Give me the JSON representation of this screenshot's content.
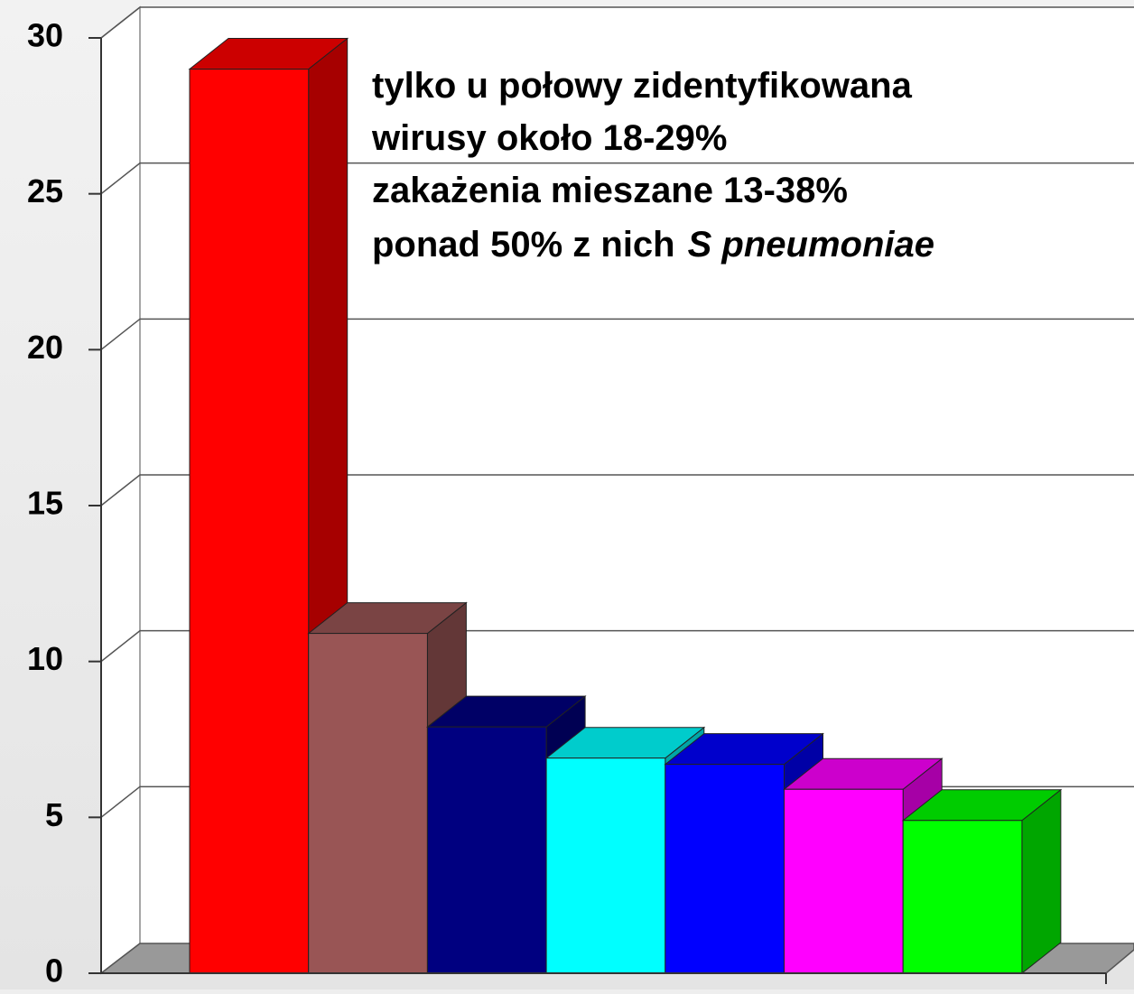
{
  "chart_data": {
    "type": "bar3d",
    "categories": [
      null,
      null,
      null,
      null,
      null,
      null,
      null
    ],
    "values": [
      29,
      10.9,
      7.9,
      6.9,
      6.7,
      5.9,
      4.9
    ],
    "colors": [
      "#ff0000",
      "#995555",
      "#000080",
      "#00ffff",
      "#0000ff",
      "#ff00ff",
      "#00ff00"
    ],
    "ylim": [
      0,
      30
    ],
    "yticks": [
      0,
      5,
      10,
      15,
      20,
      25,
      30
    ],
    "grid": true,
    "annotation": [
      "tylko u połowy zidentyfikowana",
      "wirusy około 18-29%",
      "zakażenia mieszane 13-38%"
    ],
    "annotation_last": [
      "ponad 50% z nich",
      "S pneumoniae"
    ]
  }
}
